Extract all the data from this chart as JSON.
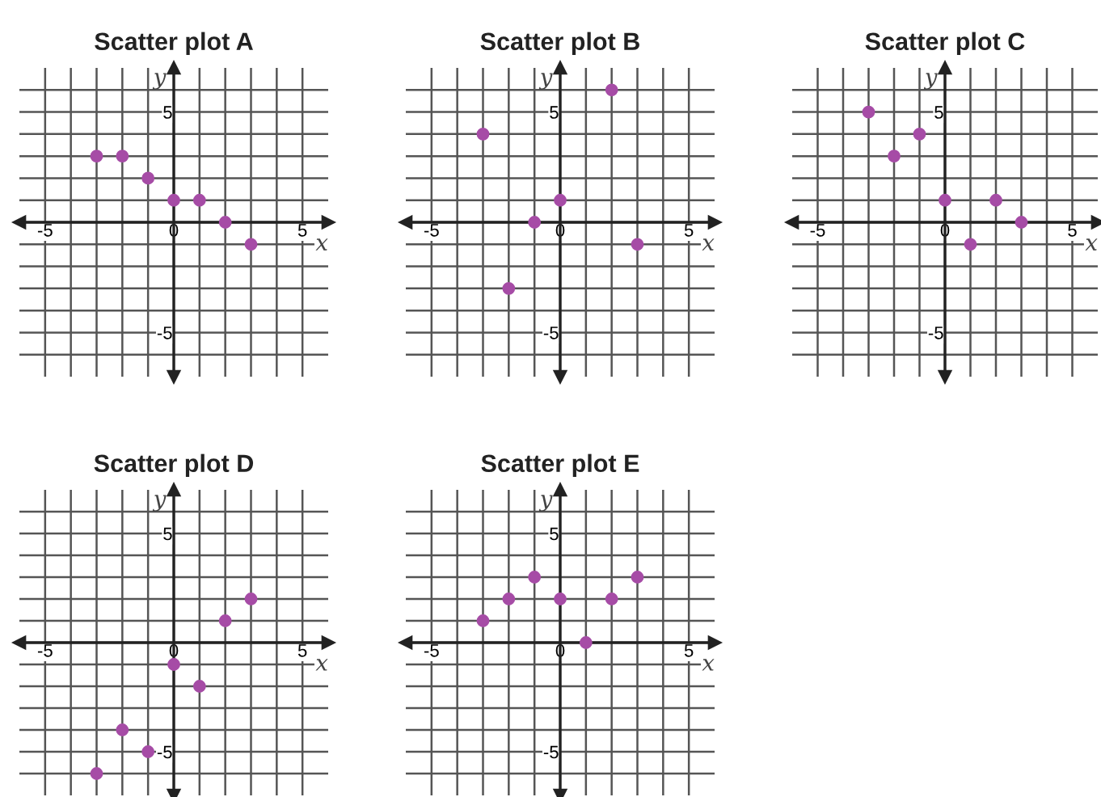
{
  "chart_data": [
    {
      "type": "scatter",
      "title": "Scatter plot A",
      "xlabel": "x",
      "ylabel": "y",
      "x": [
        -3,
        -2,
        -1,
        0,
        1,
        2,
        3
      ],
      "values": [
        3,
        3,
        2,
        1,
        1,
        0,
        -1
      ],
      "color": "#a64ca6",
      "marker": "circle",
      "grid": true,
      "xlim": [
        -6,
        6
      ],
      "ylim": [
        -7,
        7
      ],
      "xticks": [
        {
          "value": -5,
          "label": "-5"
        },
        {
          "value": -4,
          "label": null
        },
        {
          "value": -3,
          "label": null
        },
        {
          "value": -2,
          "label": null
        },
        {
          "value": -1,
          "label": null
        },
        {
          "value": 0,
          "label": "0"
        },
        {
          "value": 1,
          "label": null
        },
        {
          "value": 2,
          "label": null
        },
        {
          "value": 3,
          "label": null
        },
        {
          "value": 4,
          "label": null
        },
        {
          "value": 5,
          "label": "5"
        }
      ],
      "yticks": [
        {
          "value": -6,
          "label": null
        },
        {
          "value": -5,
          "label": "-5"
        },
        {
          "value": -4,
          "label": null
        },
        {
          "value": -3,
          "label": null
        },
        {
          "value": -2,
          "label": null
        },
        {
          "value": -1,
          "label": null
        },
        {
          "value": 0,
          "label": null
        },
        {
          "value": 1,
          "label": null
        },
        {
          "value": 2,
          "label": null
        },
        {
          "value": 3,
          "label": null
        },
        {
          "value": 4,
          "label": null
        },
        {
          "value": 5,
          "label": "5"
        },
        {
          "value": 6,
          "label": null
        }
      ]
    },
    {
      "type": "scatter",
      "title": "Scatter plot B",
      "xlabel": "x",
      "ylabel": "y",
      "x": [
        -3,
        -2,
        -1,
        0,
        2,
        3
      ],
      "values": [
        4,
        -3,
        0,
        1,
        6,
        -1
      ],
      "color": "#a64ca6",
      "marker": "circle",
      "grid": true,
      "xlim": [
        -6,
        6
      ],
      "ylim": [
        -7,
        7
      ],
      "xticks": [
        {
          "value": -5,
          "label": "-5"
        },
        {
          "value": -4,
          "label": null
        },
        {
          "value": -3,
          "label": null
        },
        {
          "value": -2,
          "label": null
        },
        {
          "value": -1,
          "label": null
        },
        {
          "value": 0,
          "label": "0"
        },
        {
          "value": 1,
          "label": null
        },
        {
          "value": 2,
          "label": null
        },
        {
          "value": 3,
          "label": null
        },
        {
          "value": 4,
          "label": null
        },
        {
          "value": 5,
          "label": "5"
        }
      ],
      "yticks": [
        {
          "value": -6,
          "label": null
        },
        {
          "value": -5,
          "label": "-5"
        },
        {
          "value": -4,
          "label": null
        },
        {
          "value": -3,
          "label": null
        },
        {
          "value": -2,
          "label": null
        },
        {
          "value": -1,
          "label": null
        },
        {
          "value": 0,
          "label": null
        },
        {
          "value": 1,
          "label": null
        },
        {
          "value": 2,
          "label": null
        },
        {
          "value": 3,
          "label": null
        },
        {
          "value": 4,
          "label": null
        },
        {
          "value": 5,
          "label": "5"
        },
        {
          "value": 6,
          "label": null
        }
      ]
    },
    {
      "type": "scatter",
      "title": "Scatter plot C",
      "xlabel": "x",
      "ylabel": "y",
      "x": [
        -3,
        -2,
        -1,
        0,
        1,
        2,
        3
      ],
      "values": [
        5,
        3,
        4,
        1,
        -1,
        1,
        0
      ],
      "color": "#a64ca6",
      "marker": "circle",
      "grid": true,
      "xlim": [
        -6,
        6
      ],
      "ylim": [
        -7,
        7
      ],
      "xticks": [
        {
          "value": -5,
          "label": "-5"
        },
        {
          "value": -4,
          "label": null
        },
        {
          "value": -3,
          "label": null
        },
        {
          "value": -2,
          "label": null
        },
        {
          "value": -1,
          "label": null
        },
        {
          "value": 0,
          "label": "0"
        },
        {
          "value": 1,
          "label": null
        },
        {
          "value": 2,
          "label": null
        },
        {
          "value": 3,
          "label": null
        },
        {
          "value": 4,
          "label": null
        },
        {
          "value": 5,
          "label": "5"
        }
      ],
      "yticks": [
        {
          "value": -6,
          "label": null
        },
        {
          "value": -5,
          "label": "-5"
        },
        {
          "value": -4,
          "label": null
        },
        {
          "value": -3,
          "label": null
        },
        {
          "value": -2,
          "label": null
        },
        {
          "value": -1,
          "label": null
        },
        {
          "value": 0,
          "label": null
        },
        {
          "value": 1,
          "label": null
        },
        {
          "value": 2,
          "label": null
        },
        {
          "value": 3,
          "label": null
        },
        {
          "value": 4,
          "label": null
        },
        {
          "value": 5,
          "label": "5"
        },
        {
          "value": 6,
          "label": null
        }
      ]
    },
    {
      "type": "scatter",
      "title": "Scatter plot D",
      "xlabel": "x",
      "ylabel": "y",
      "x": [
        -3,
        -2,
        -1,
        0,
        1,
        2,
        3
      ],
      "values": [
        -6,
        -4,
        -5,
        -1,
        -2,
        1,
        2
      ],
      "color": "#a64ca6",
      "marker": "circle",
      "grid": true,
      "xlim": [
        -6,
        6
      ],
      "ylim": [
        -7,
        7
      ],
      "xticks": [
        {
          "value": -5,
          "label": "-5"
        },
        {
          "value": -4,
          "label": null
        },
        {
          "value": -3,
          "label": null
        },
        {
          "value": -2,
          "label": null
        },
        {
          "value": -1,
          "label": null
        },
        {
          "value": 0,
          "label": "0"
        },
        {
          "value": 1,
          "label": null
        },
        {
          "value": 2,
          "label": null
        },
        {
          "value": 3,
          "label": null
        },
        {
          "value": 4,
          "label": null
        },
        {
          "value": 5,
          "label": "5"
        }
      ],
      "yticks": [
        {
          "value": -6,
          "label": null
        },
        {
          "value": -5,
          "label": "-5"
        },
        {
          "value": -4,
          "label": null
        },
        {
          "value": -3,
          "label": null
        },
        {
          "value": -2,
          "label": null
        },
        {
          "value": -1,
          "label": null
        },
        {
          "value": 0,
          "label": null
        },
        {
          "value": 1,
          "label": null
        },
        {
          "value": 2,
          "label": null
        },
        {
          "value": 3,
          "label": null
        },
        {
          "value": 4,
          "label": null
        },
        {
          "value": 5,
          "label": "5"
        },
        {
          "value": 6,
          "label": null
        }
      ]
    },
    {
      "type": "scatter",
      "title": "Scatter plot E",
      "xlabel": "x",
      "ylabel": "y",
      "x": [
        -3,
        -2,
        -1,
        0,
        1,
        2,
        3
      ],
      "values": [
        1,
        2,
        3,
        2,
        0,
        2,
        3
      ],
      "color": "#a64ca6",
      "marker": "circle",
      "grid": true,
      "xlim": [
        -6,
        6
      ],
      "ylim": [
        -7,
        7
      ],
      "xticks": [
        {
          "value": -5,
          "label": "-5"
        },
        {
          "value": -4,
          "label": null
        },
        {
          "value": -3,
          "label": null
        },
        {
          "value": -2,
          "label": null
        },
        {
          "value": -1,
          "label": null
        },
        {
          "value": 0,
          "label": "0"
        },
        {
          "value": 1,
          "label": null
        },
        {
          "value": 2,
          "label": null
        },
        {
          "value": 3,
          "label": null
        },
        {
          "value": 4,
          "label": null
        },
        {
          "value": 5,
          "label": "5"
        }
      ],
      "yticks": [
        {
          "value": -6,
          "label": null
        },
        {
          "value": -5,
          "label": "-5"
        },
        {
          "value": -4,
          "label": null
        },
        {
          "value": -3,
          "label": null
        },
        {
          "value": -2,
          "label": null
        },
        {
          "value": -1,
          "label": null
        },
        {
          "value": 0,
          "label": null
        },
        {
          "value": 1,
          "label": null
        },
        {
          "value": 2,
          "label": null
        },
        {
          "value": 3,
          "label": null
        },
        {
          "value": 4,
          "label": null
        },
        {
          "value": 5,
          "label": "5"
        },
        {
          "value": 6,
          "label": null
        }
      ]
    }
  ]
}
